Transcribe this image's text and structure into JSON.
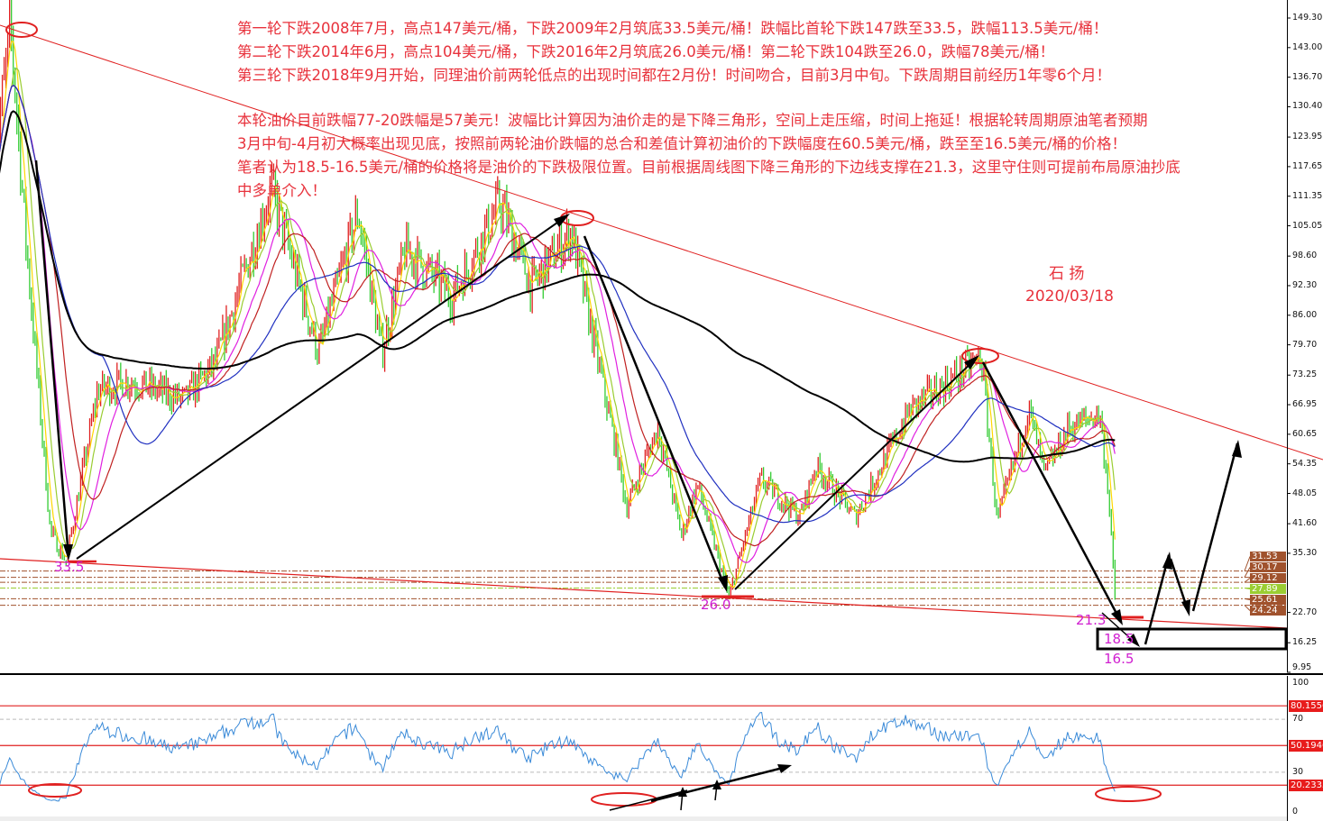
{
  "notes": {
    "line1": "第一轮下跌2008年7月，高点147美元/桶，下跌2009年2月筑底33.5美元/桶！跌幅比首轮下跌147跌至33.5，跌幅113.5美元/桶！",
    "line2": "第二轮下跌2014年6月，高点104美元/桶，下跌2016年2月筑底26.0美元/桶！第二轮下跌104跌至26.0，跌幅78美元/桶！",
    "line3": "第三轮下跌2018年9月开始，同理油价前两轮低点的出现时间都在2月份！时间吻合，目前3月中旬。下跌周期目前经历1年零6个月！",
    "line4": "本轮油价目前跌幅77-20跌幅是57美元！波幅比计算因为油价走的是下降三角形，空间上走压缩，时间上拖延！根据轮转周期原油笔者预期",
    "line5": "3月中旬-4月初大概率出现见底，按照前两轮油价跌幅的总合和差值计算初油价的下跌幅度在60.5美元/桶，跌至至16.5美元/桶的价格！",
    "line6": "笔者认为18.5-16.5美元/桶的价格将是油价的下跌极限位置。目前根据周线图下降三角形的下边线支撑在21.3，这里守住则可提前布局原油抄底",
    "line7": "中多单介入！"
  },
  "author": {
    "name": "石 扬",
    "date": "2020/03/18"
  },
  "annotations": {
    "low1": "33.5",
    "low2": "26.0",
    "support": "21.3",
    "target_high": "18.5",
    "target_low": "16.5"
  },
  "colors": {
    "note": "#e8323c",
    "label": "#d020d0",
    "trendline": "#e02020",
    "up": "#e02020",
    "down": "#33cc33",
    "rsi": "#3a8ad8",
    "ma200": "#000000"
  },
  "chart_data": [
    {
      "type": "candlestick",
      "title": "",
      "timeframe": "weekly",
      "ylim": [
        9.95,
        149.3
      ],
      "y_ticks": [
        "149.30",
        "143.00",
        "136.70",
        "130.40",
        "123.95",
        "117.65",
        "111.35",
        "105.05",
        "98.60",
        "92.30",
        "86.00",
        "79.70",
        "73.25",
        "66.95",
        "60.65",
        "54.35",
        "48.05",
        "41.60",
        "35.30",
        "22.70",
        "16.25",
        "9.95"
      ],
      "price_tags": [
        {
          "value": "31.53",
          "color": "#a0522d"
        },
        {
          "value": "30.17",
          "color": "#a0522d"
        },
        {
          "value": "29.12",
          "color": "#a0522d"
        },
        {
          "value": "27.89",
          "color": "#9acd32"
        },
        {
          "value": "25.61",
          "color": "#a0522d"
        },
        {
          "value": "24.24",
          "color": "#a0522d"
        }
      ],
      "moving_averages": [
        {
          "period": 5,
          "color": "#ffd700"
        },
        {
          "period": 10,
          "color": "#9acd32"
        },
        {
          "period": 20,
          "color": "#e020e0"
        },
        {
          "period": 30,
          "color": "#c02020"
        },
        {
          "period": 60,
          "color": "#2030c0"
        },
        {
          "period": 200,
          "color": "#000000"
        }
      ],
      "close_waypoints": [
        [
          "2008-05",
          120
        ],
        [
          "2008-07",
          147
        ],
        [
          "2008-09",
          100
        ],
        [
          "2008-12",
          40
        ],
        [
          "2009-02",
          33.5
        ],
        [
          "2009-06",
          70
        ],
        [
          "2009-10",
          72
        ],
        [
          "2010-05",
          68
        ],
        [
          "2010-09",
          76
        ],
        [
          "2011-04",
          113
        ],
        [
          "2011-10",
          78
        ],
        [
          "2012-03",
          108
        ],
        [
          "2012-06",
          78
        ],
        [
          "2012-09",
          100
        ],
        [
          "2013-03",
          90
        ],
        [
          "2013-09",
          110
        ],
        [
          "2014-01",
          92
        ],
        [
          "2014-06",
          104
        ],
        [
          "2014-12",
          55
        ],
        [
          "2015-01",
          45
        ],
        [
          "2015-05",
          62
        ],
        [
          "2015-08",
          39
        ],
        [
          "2015-10",
          50
        ],
        [
          "2016-02",
          26
        ],
        [
          "2016-06",
          51
        ],
        [
          "2016-11",
          43
        ],
        [
          "2017-01",
          54
        ],
        [
          "2017-06",
          43
        ],
        [
          "2018-01",
          66
        ],
        [
          "2018-10",
          77
        ],
        [
          "2018-12",
          42
        ],
        [
          "2019-04",
          66
        ],
        [
          "2019-06",
          52
        ],
        [
          "2019-09",
          62
        ],
        [
          "2020-01",
          65
        ],
        [
          "2020-02",
          50
        ],
        [
          "2020-03",
          24
        ]
      ]
    },
    {
      "type": "line",
      "indicator": "RSI",
      "ylim": [
        0,
        100
      ],
      "y_ticks": [
        "100",
        "70",
        "30",
        "0"
      ],
      "levels": [
        "80.1556",
        "50.1946",
        "20.2335"
      ],
      "dotted_levels": [
        70,
        30
      ]
    }
  ]
}
